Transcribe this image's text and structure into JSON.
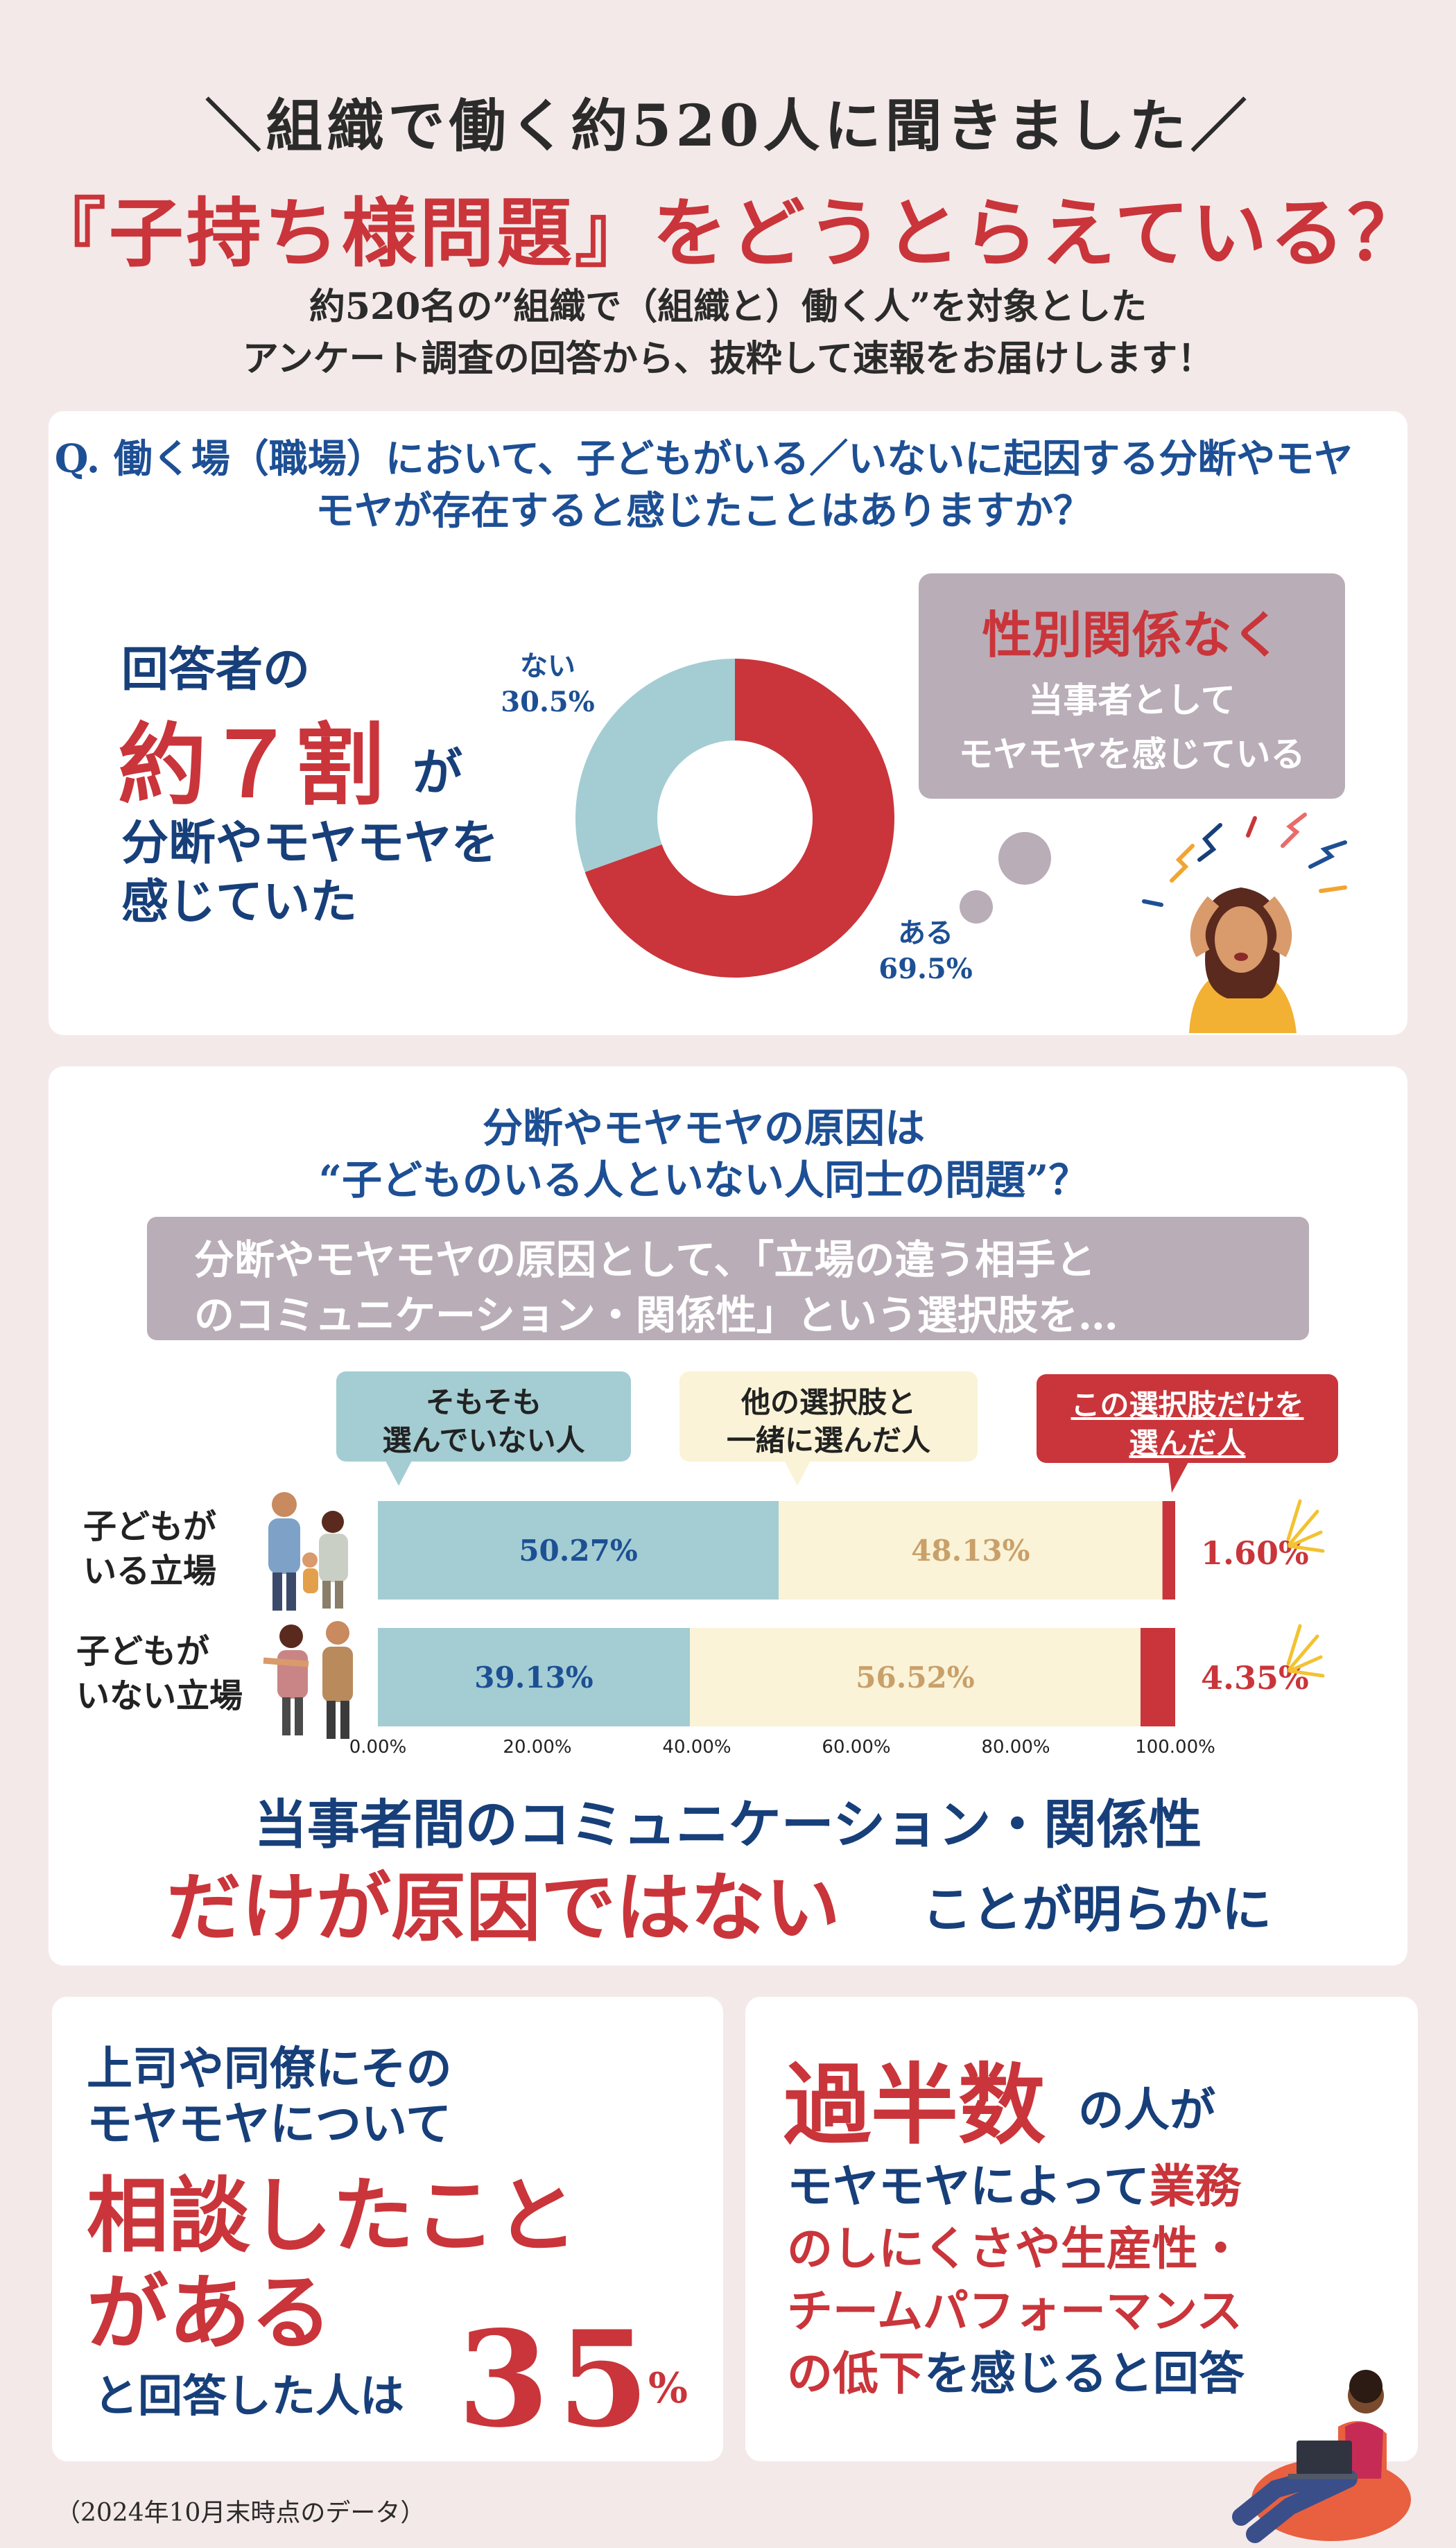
{
  "header": {
    "line1": "＼組織で働く約520人に聞きました／",
    "title": "『子持ち様問題』をどうとらえている？",
    "sub1": "約520名の”組織で（組織と）働く人”を対象とした",
    "sub2": "アンケート調査の回答から、抜粋して速報をお届けします！"
  },
  "section1": {
    "question": "Q. 働く場（職場）において、子どもがいる／いないに起因する分断やモヤモヤが存在すると感じたことはありますか？",
    "lead_line1": "回答者の",
    "lead_big": "約７割",
    "lead_ga": "が",
    "lead_line3": "分断やモヤモヤを",
    "lead_line4": "感じていた",
    "bubble_title": "性別関係なく",
    "bubble_line1": "当事者として",
    "bubble_line2": "モヤモヤを感じている"
  },
  "section2": {
    "heading1": "分断やモヤモヤの原因は",
    "heading2": "“子どものいる人といない人同士の問題”？",
    "grey_line1": "分断やモヤモヤの原因として、「立場の違う相手と",
    "grey_line2": "のコミュニケーション・関係性」という選択肢を…",
    "callout1": "そもそも\n選んでいない人",
    "callout2": "他の選択肢と\n一緒に選んだ人",
    "callout3": "この選択肢だけを\n選んだ人",
    "row1_label": "子どもが\nいる立場",
    "row2_label": "子どもが\nいない立場",
    "conclusion1": "当事者間のコミュニケーション・関係性",
    "conclusion2": "だけが原因ではない",
    "conclusion3": "ことが明らかに"
  },
  "bottom_left": {
    "line1": "上司や同僚にその",
    "line2": "モヤモヤについて",
    "line3": "相談したこと",
    "line4": "がある",
    "line5": "と回答した人は",
    "number": "35",
    "unit": "%"
  },
  "bottom_right": {
    "big": "過半数",
    "big_suffix": "の人が",
    "l1_a": "モヤモヤによって",
    "l1_b": "業務",
    "l2": "のしにくさや生産性・",
    "l3": "チームパフォーマンス",
    "l4_a": "の低下",
    "l4_b": "を感じると回答"
  },
  "footer": "（2024年10月末時点のデータ）",
  "colors": {
    "red": "#c9353a",
    "navy": "#173f7a",
    "teal": "#a3cdd2",
    "cream": "#faf3d7",
    "mauve": "#b9adb7",
    "background": "#f4e9e9"
  },
  "chart_data": [
    {
      "type": "pie",
      "variant": "donut",
      "labels": [
        "ない",
        "ある"
      ],
      "values": [
        30.5,
        69.5
      ],
      "value_labels": [
        "30.5%",
        "69.5%"
      ],
      "colors": [
        "#a3cdd2",
        "#c9353a"
      ]
    },
    {
      "type": "bar",
      "orientation": "horizontal",
      "stacked": true,
      "categories": [
        "子どもがいる立場",
        "子どもがいない立場"
      ],
      "series": [
        {
          "name": "そもそも選んでいない人",
          "values": [
            50.27,
            39.13
          ],
          "labels": [
            "50.27%",
            "39.13%"
          ],
          "color": "#a3cdd2",
          "label_color": "#1d4f94"
        },
        {
          "name": "他の選択肢と一緒に選んだ人",
          "values": [
            48.13,
            56.52
          ],
          "labels": [
            "48.13%",
            "56.52%"
          ],
          "color": "#faf3d7",
          "label_color": "#c9a06a"
        },
        {
          "name": "この選択肢だけを選んだ人",
          "values": [
            1.6,
            4.35
          ],
          "labels": [
            "1.60%",
            "4.35%"
          ],
          "color": "#c9353a",
          "label_color": "#c9353a"
        }
      ],
      "x_ticks": [
        "0.00%",
        "20.00%",
        "40.00%",
        "60.00%",
        "80.00%",
        "100.00%"
      ],
      "xlim": [
        0,
        100
      ]
    }
  ]
}
